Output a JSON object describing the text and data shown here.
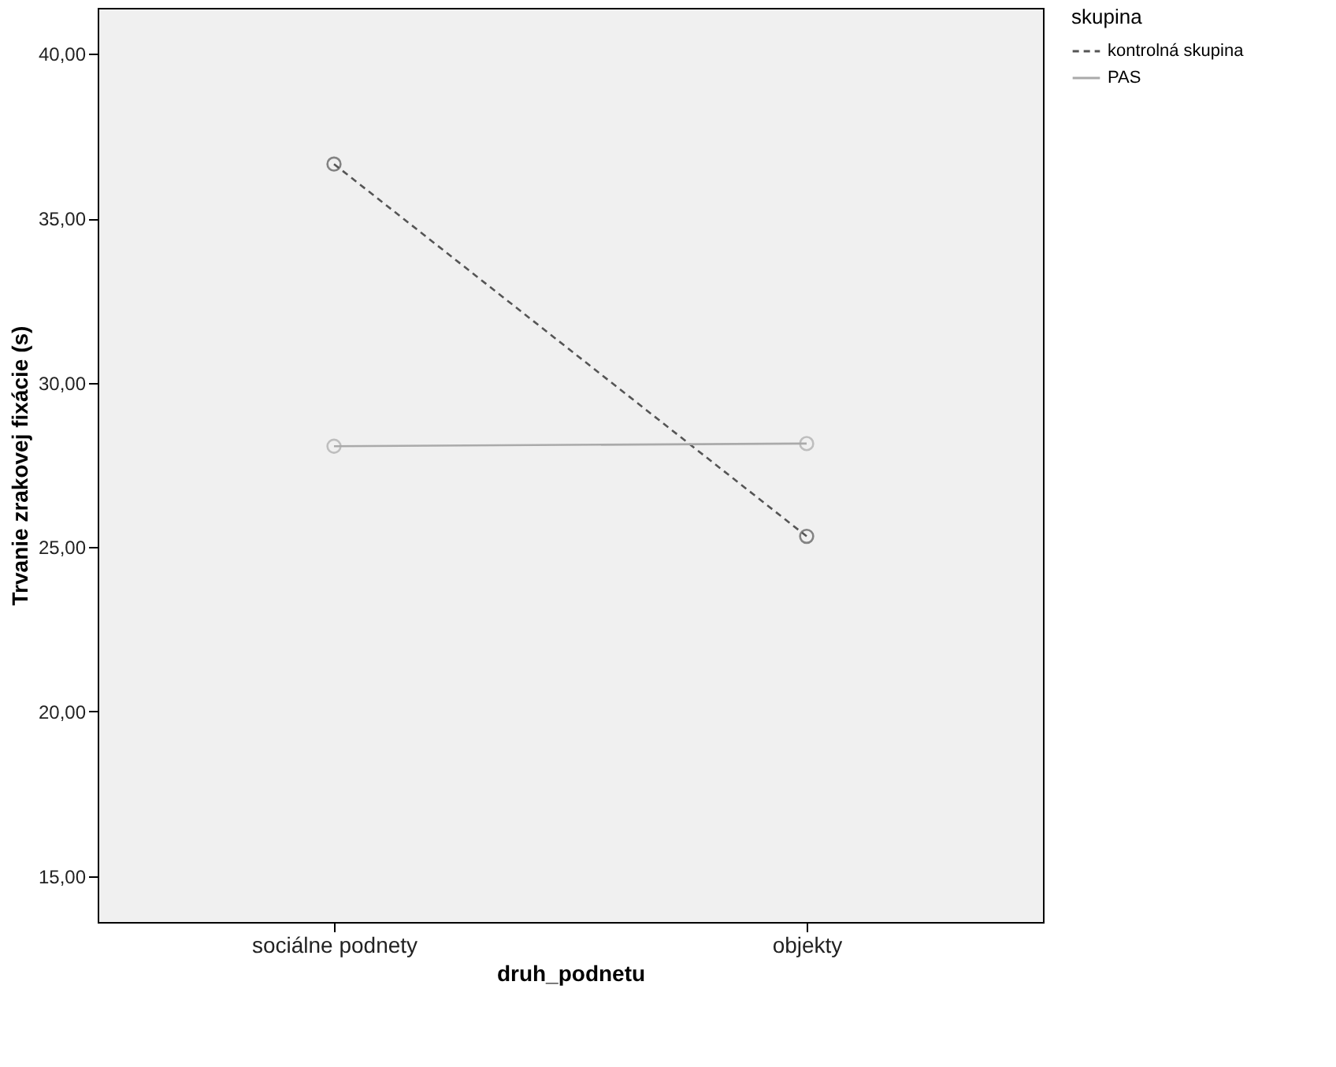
{
  "chart_data": {
    "type": "line",
    "xlabel": "druh_podnetu",
    "ylabel": "Trvanie zrakovej fixácie (s)",
    "legend_title": "skupina",
    "legend": "top right",
    "categories": [
      "sociálne podnety",
      "objekty"
    ],
    "series": [
      {
        "name": "kontrolná skupina",
        "color": "#555555",
        "line_style": "dashed",
        "values": [
          36.65,
          25.33
        ]
      },
      {
        "name": "PAS",
        "color": "#aaaaaa",
        "line_style": "solid",
        "values": [
          28.07,
          28.15
        ]
      }
    ],
    "ylim": [
      13.6,
      41.4
    ],
    "yticks": [
      {
        "value": 15,
        "label": "15,00"
      },
      {
        "value": 20,
        "label": "20,00"
      },
      {
        "value": 25,
        "label": "25,00"
      },
      {
        "value": 30,
        "label": "30,00"
      },
      {
        "value": 35,
        "label": "35,00"
      },
      {
        "value": 40,
        "label": "40,00"
      }
    ],
    "marker": "circle",
    "grid": false
  }
}
